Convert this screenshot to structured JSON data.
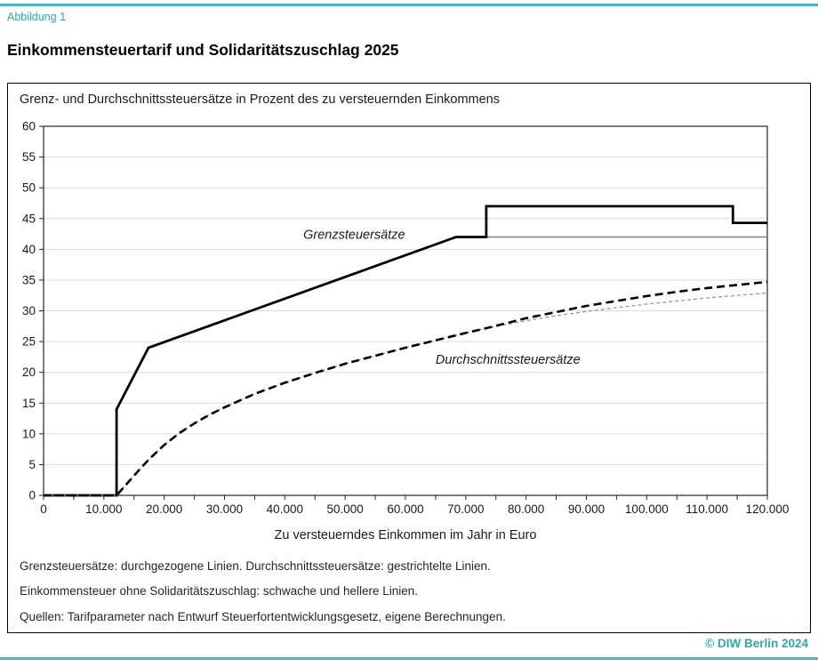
{
  "page": {
    "figure_label": "Abbildung 1",
    "title": "Einkommensteuertarif und Solidaritätszuschlag 2025",
    "copyright": "© DIW Berlin 2024"
  },
  "colors": {
    "accent_text": "#2FA7AB",
    "accent_rule": "#4AB6B8",
    "grid": "#dcdcdc",
    "frame": "#262626",
    "tick_text": "#1a1a1a"
  },
  "chart_data": {
    "type": "line",
    "title": "Grenz- und Durchschnittssteuersätze in Prozent des zu versteuernden Einkommens",
    "xlabel": "Zu versteuerndes Einkommen im Jahr in Euro",
    "ylabel": "",
    "xlim": [
      0,
      120000
    ],
    "ylim": [
      0,
      60
    ],
    "x_tick_step": 10000,
    "x_minor_tick_step": 5000,
    "y_tick_step": 5,
    "x_tick_labels": [
      "0",
      "10.000",
      "20.000",
      "30.000",
      "40.000",
      "50.000",
      "60.000",
      "70.000",
      "80.000",
      "90.000",
      "100.000",
      "110.000",
      "120.000"
    ],
    "y_tick_labels": [
      "0",
      "5",
      "10",
      "15",
      "20",
      "25",
      "30",
      "35",
      "40",
      "45",
      "50",
      "55",
      "60"
    ],
    "grid": "horizontal",
    "legend_position": "none",
    "series": [
      {
        "name": "Grenzsteuersatz ohne Solidaritätszuschlag",
        "style": "solid",
        "color": "#808080",
        "width": 1.4,
        "dash": "",
        "points": [
          [
            0,
            0
          ],
          [
            12100,
            0
          ],
          [
            12100,
            14
          ],
          [
            17400,
            24
          ],
          [
            68400,
            42
          ],
          [
            120000,
            42
          ]
        ]
      },
      {
        "name": "Grenzsteuersatz mit Solidaritätszuschlag",
        "style": "solid",
        "color": "#000000",
        "width": 2.8,
        "dash": "",
        "points": [
          [
            0,
            0
          ],
          [
            12100,
            0
          ],
          [
            12100,
            14
          ],
          [
            17400,
            24
          ],
          [
            68400,
            42
          ],
          [
            73400,
            42
          ],
          [
            73400,
            47
          ],
          [
            114300,
            47
          ],
          [
            114300,
            44.3
          ],
          [
            120000,
            44.3
          ]
        ]
      },
      {
        "name": "Durchschnittssteuersatz ohne Solidaritätszuschlag",
        "style": "dashed",
        "color": "#979797",
        "width": 1.3,
        "dash": "4 3",
        "points": [
          [
            0,
            0
          ],
          [
            12100,
            0
          ],
          [
            14000,
            2.1
          ],
          [
            16000,
            4.3
          ],
          [
            17430,
            5.8
          ],
          [
            20000,
            8.2
          ],
          [
            22500,
            10.1
          ],
          [
            25000,
            11.7
          ],
          [
            27500,
            13.1
          ],
          [
            30000,
            14.3
          ],
          [
            35000,
            16.5
          ],
          [
            40000,
            18.3
          ],
          [
            45000,
            19.9
          ],
          [
            50000,
            21.4
          ],
          [
            55000,
            22.7
          ],
          [
            60000,
            24.0
          ],
          [
            65000,
            25.2
          ],
          [
            70000,
            26.4
          ],
          [
            73500,
            27.2
          ],
          [
            80000,
            28.4
          ],
          [
            85000,
            29.2
          ],
          [
            90000,
            29.9
          ],
          [
            95000,
            30.5
          ],
          [
            100000,
            31.1
          ],
          [
            105000,
            31.6
          ],
          [
            110000,
            32.1
          ],
          [
            115000,
            32.5
          ],
          [
            120000,
            32.9
          ]
        ]
      },
      {
        "name": "Durchschnittssteuersatz mit Solidaritätszuschlag",
        "style": "dashed",
        "color": "#000000",
        "width": 2.6,
        "dash": "9 5",
        "points": [
          [
            0,
            0
          ],
          [
            12100,
            0
          ],
          [
            14000,
            2.1
          ],
          [
            16000,
            4.3
          ],
          [
            17430,
            5.8
          ],
          [
            20000,
            8.2
          ],
          [
            22500,
            10.1
          ],
          [
            25000,
            11.7
          ],
          [
            27500,
            13.1
          ],
          [
            30000,
            14.3
          ],
          [
            35000,
            16.5
          ],
          [
            40000,
            18.3
          ],
          [
            45000,
            19.9
          ],
          [
            50000,
            21.4
          ],
          [
            55000,
            22.7
          ],
          [
            60000,
            24.0
          ],
          [
            65000,
            25.2
          ],
          [
            70000,
            26.4
          ],
          [
            73500,
            27.2
          ],
          [
            80000,
            28.8
          ],
          [
            85000,
            29.8
          ],
          [
            90000,
            30.8
          ],
          [
            95000,
            31.6
          ],
          [
            100000,
            32.4
          ],
          [
            105000,
            33.1
          ],
          [
            110000,
            33.7
          ],
          [
            115000,
            34.2
          ],
          [
            120000,
            34.7
          ]
        ]
      }
    ],
    "annotations": [
      {
        "text": "Grenzsteuersätze",
        "x": 51500,
        "y": 42.4
      },
      {
        "text": "Durchschnittssteuersätze",
        "x": 77000,
        "y": 22.1
      }
    ]
  },
  "footer": {
    "line1": "Grenzsteuersätze: durchgezogene Linien. Durchschnittssteuersätze: gestrichtelte Linien.",
    "line2": "Einkommensteuer ohne Solidaritätszuschlag: schwache und hellere Linien.",
    "line3": "Quellen: Tarifparameter nach Entwurf Steuerfortentwicklungsgesetz, eigene Berechnungen."
  }
}
